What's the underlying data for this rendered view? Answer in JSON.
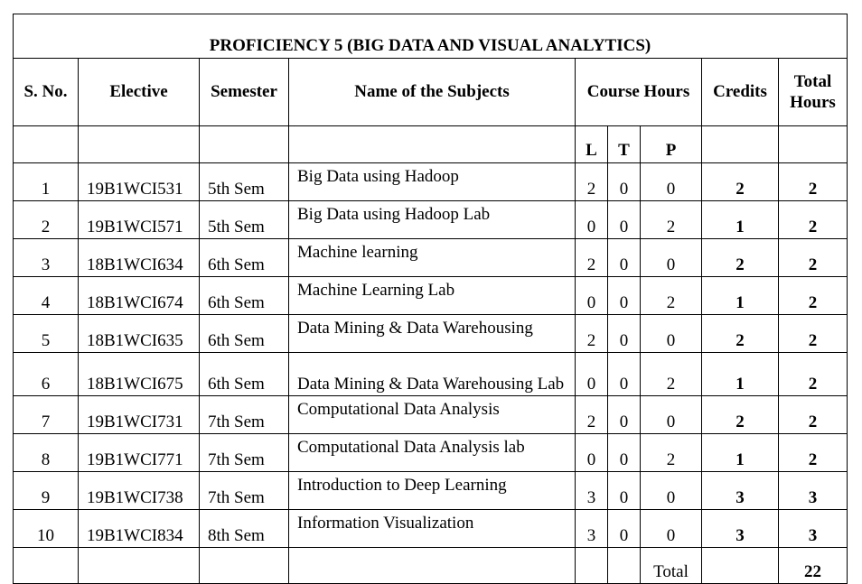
{
  "title": "PROFICIENCY 5 (BIG DATA AND VISUAL ANALYTICS)",
  "headers": {
    "sno": "S. No.",
    "elective": "Elective",
    "semester": "Semester",
    "subject": "Name of the Subjects",
    "course_hours": "Course Hours",
    "credits": "Credits",
    "total_hours": "Total Hours"
  },
  "sub_headers": {
    "l": "L",
    "t": "T",
    "p": "P"
  },
  "rows": [
    {
      "sno": "1",
      "elective": "19B1WCI531",
      "semester": "5th Sem",
      "subject": "Big Data using Hadoop",
      "l": "2",
      "t": "0",
      "p": "0",
      "credits": "2",
      "total_hours": "2"
    },
    {
      "sno": "2",
      "elective": "19B1WCI571",
      "semester": "5th Sem",
      "subject": "Big Data using Hadoop Lab",
      "l": "0",
      "t": "0",
      "p": "2",
      "credits": "1",
      "total_hours": "2"
    },
    {
      "sno": "3",
      "elective": "18B1WCI634",
      "semester": "6th Sem",
      "subject": "Machine learning",
      "l": "2",
      "t": "0",
      "p": "0",
      "credits": "2",
      "total_hours": "2"
    },
    {
      "sno": "4",
      "elective": "18B1WCI674",
      "semester": "6th Sem",
      "subject": "Machine Learning Lab",
      "l": "0",
      "t": "0",
      "p": "2",
      "credits": "1",
      "total_hours": "2"
    },
    {
      "sno": "5",
      "elective": "18B1WCI635",
      "semester": "6th Sem",
      "subject": "Data Mining & Data Warehousing",
      "l": "2",
      "t": "0",
      "p": "0",
      "credits": "2",
      "total_hours": "2"
    },
    {
      "sno": "6",
      "elective": "18B1WCI675",
      "semester": "6th Sem",
      "subject": "Data Mining & Data Warehousing Lab",
      "l": "0",
      "t": "0",
      "p": "2",
      "credits": "1",
      "total_hours": "2"
    },
    {
      "sno": "7",
      "elective": "19B1WCI731",
      "semester": "7th Sem",
      "subject": "Computational Data Analysis",
      "l": "2",
      "t": "0",
      "p": "0",
      "credits": "2",
      "total_hours": "2"
    },
    {
      "sno": "8",
      "elective": "19B1WCI771",
      "semester": "7th Sem",
      "subject": "Computational Data Analysis lab",
      "l": "0",
      "t": "0",
      "p": "2",
      "credits": "1",
      "total_hours": "2"
    },
    {
      "sno": "9",
      "elective": "19B1WCI738",
      "semester": "7th Sem",
      "subject": "Introduction to Deep Learning",
      "l": "3",
      "t": "0",
      "p": "0",
      "credits": "3",
      "total_hours": "3"
    },
    {
      "sno": "10",
      "elective": "19B1WCI834",
      "semester": "8th Sem",
      "subject": "Information Visualization",
      "l": "3",
      "t": "0",
      "p": "0",
      "credits": "3",
      "total_hours": "3"
    }
  ],
  "footer": {
    "total_label": "Total",
    "total_value": "22"
  }
}
